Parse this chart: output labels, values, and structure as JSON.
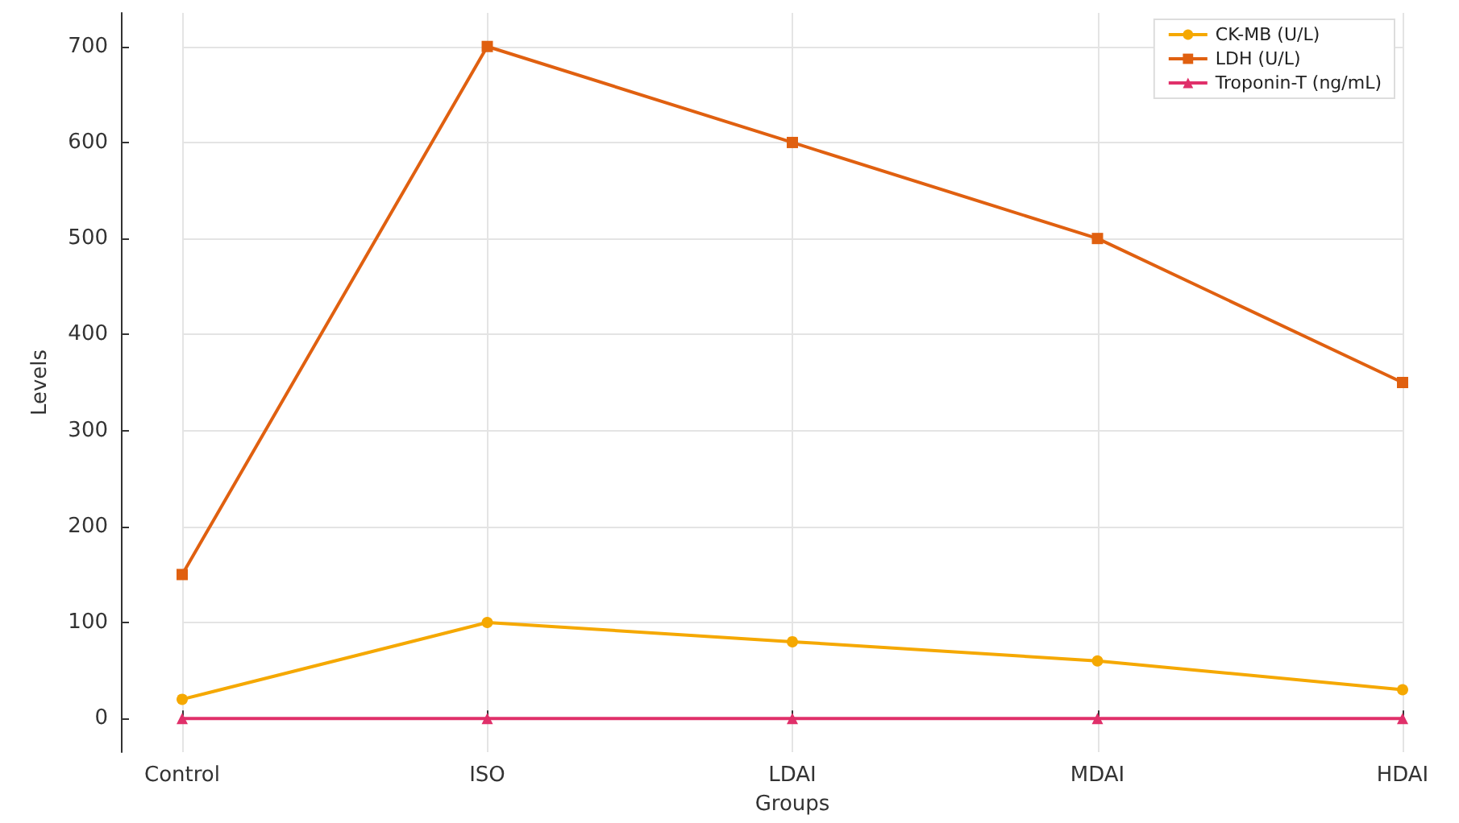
{
  "chart_data": {
    "type": "line",
    "xlabel": "Groups",
    "ylabel": "Levels",
    "categories": [
      "Control",
      "ISO",
      "LDAI",
      "MDAI",
      "HDAI"
    ],
    "series": [
      {
        "name": "CK-MB (U/L)",
        "color": "#f5a800",
        "marker": "circle",
        "values": [
          20,
          100,
          80,
          60,
          30
        ]
      },
      {
        "name": "LDH (U/L)",
        "color": "#e06010",
        "marker": "square",
        "values": [
          150,
          700,
          600,
          500,
          350
        ]
      },
      {
        "name": "Troponin-T (ng/mL)",
        "color": "#e0306a",
        "marker": "triangle",
        "values": [
          0,
          0,
          0,
          0,
          0
        ]
      }
    ],
    "ylim": [
      -35,
      735
    ],
    "yticks": [
      0,
      100,
      200,
      300,
      400,
      500,
      600,
      700
    ],
    "grid": true,
    "legend": "top right",
    "line_style": "solid"
  }
}
